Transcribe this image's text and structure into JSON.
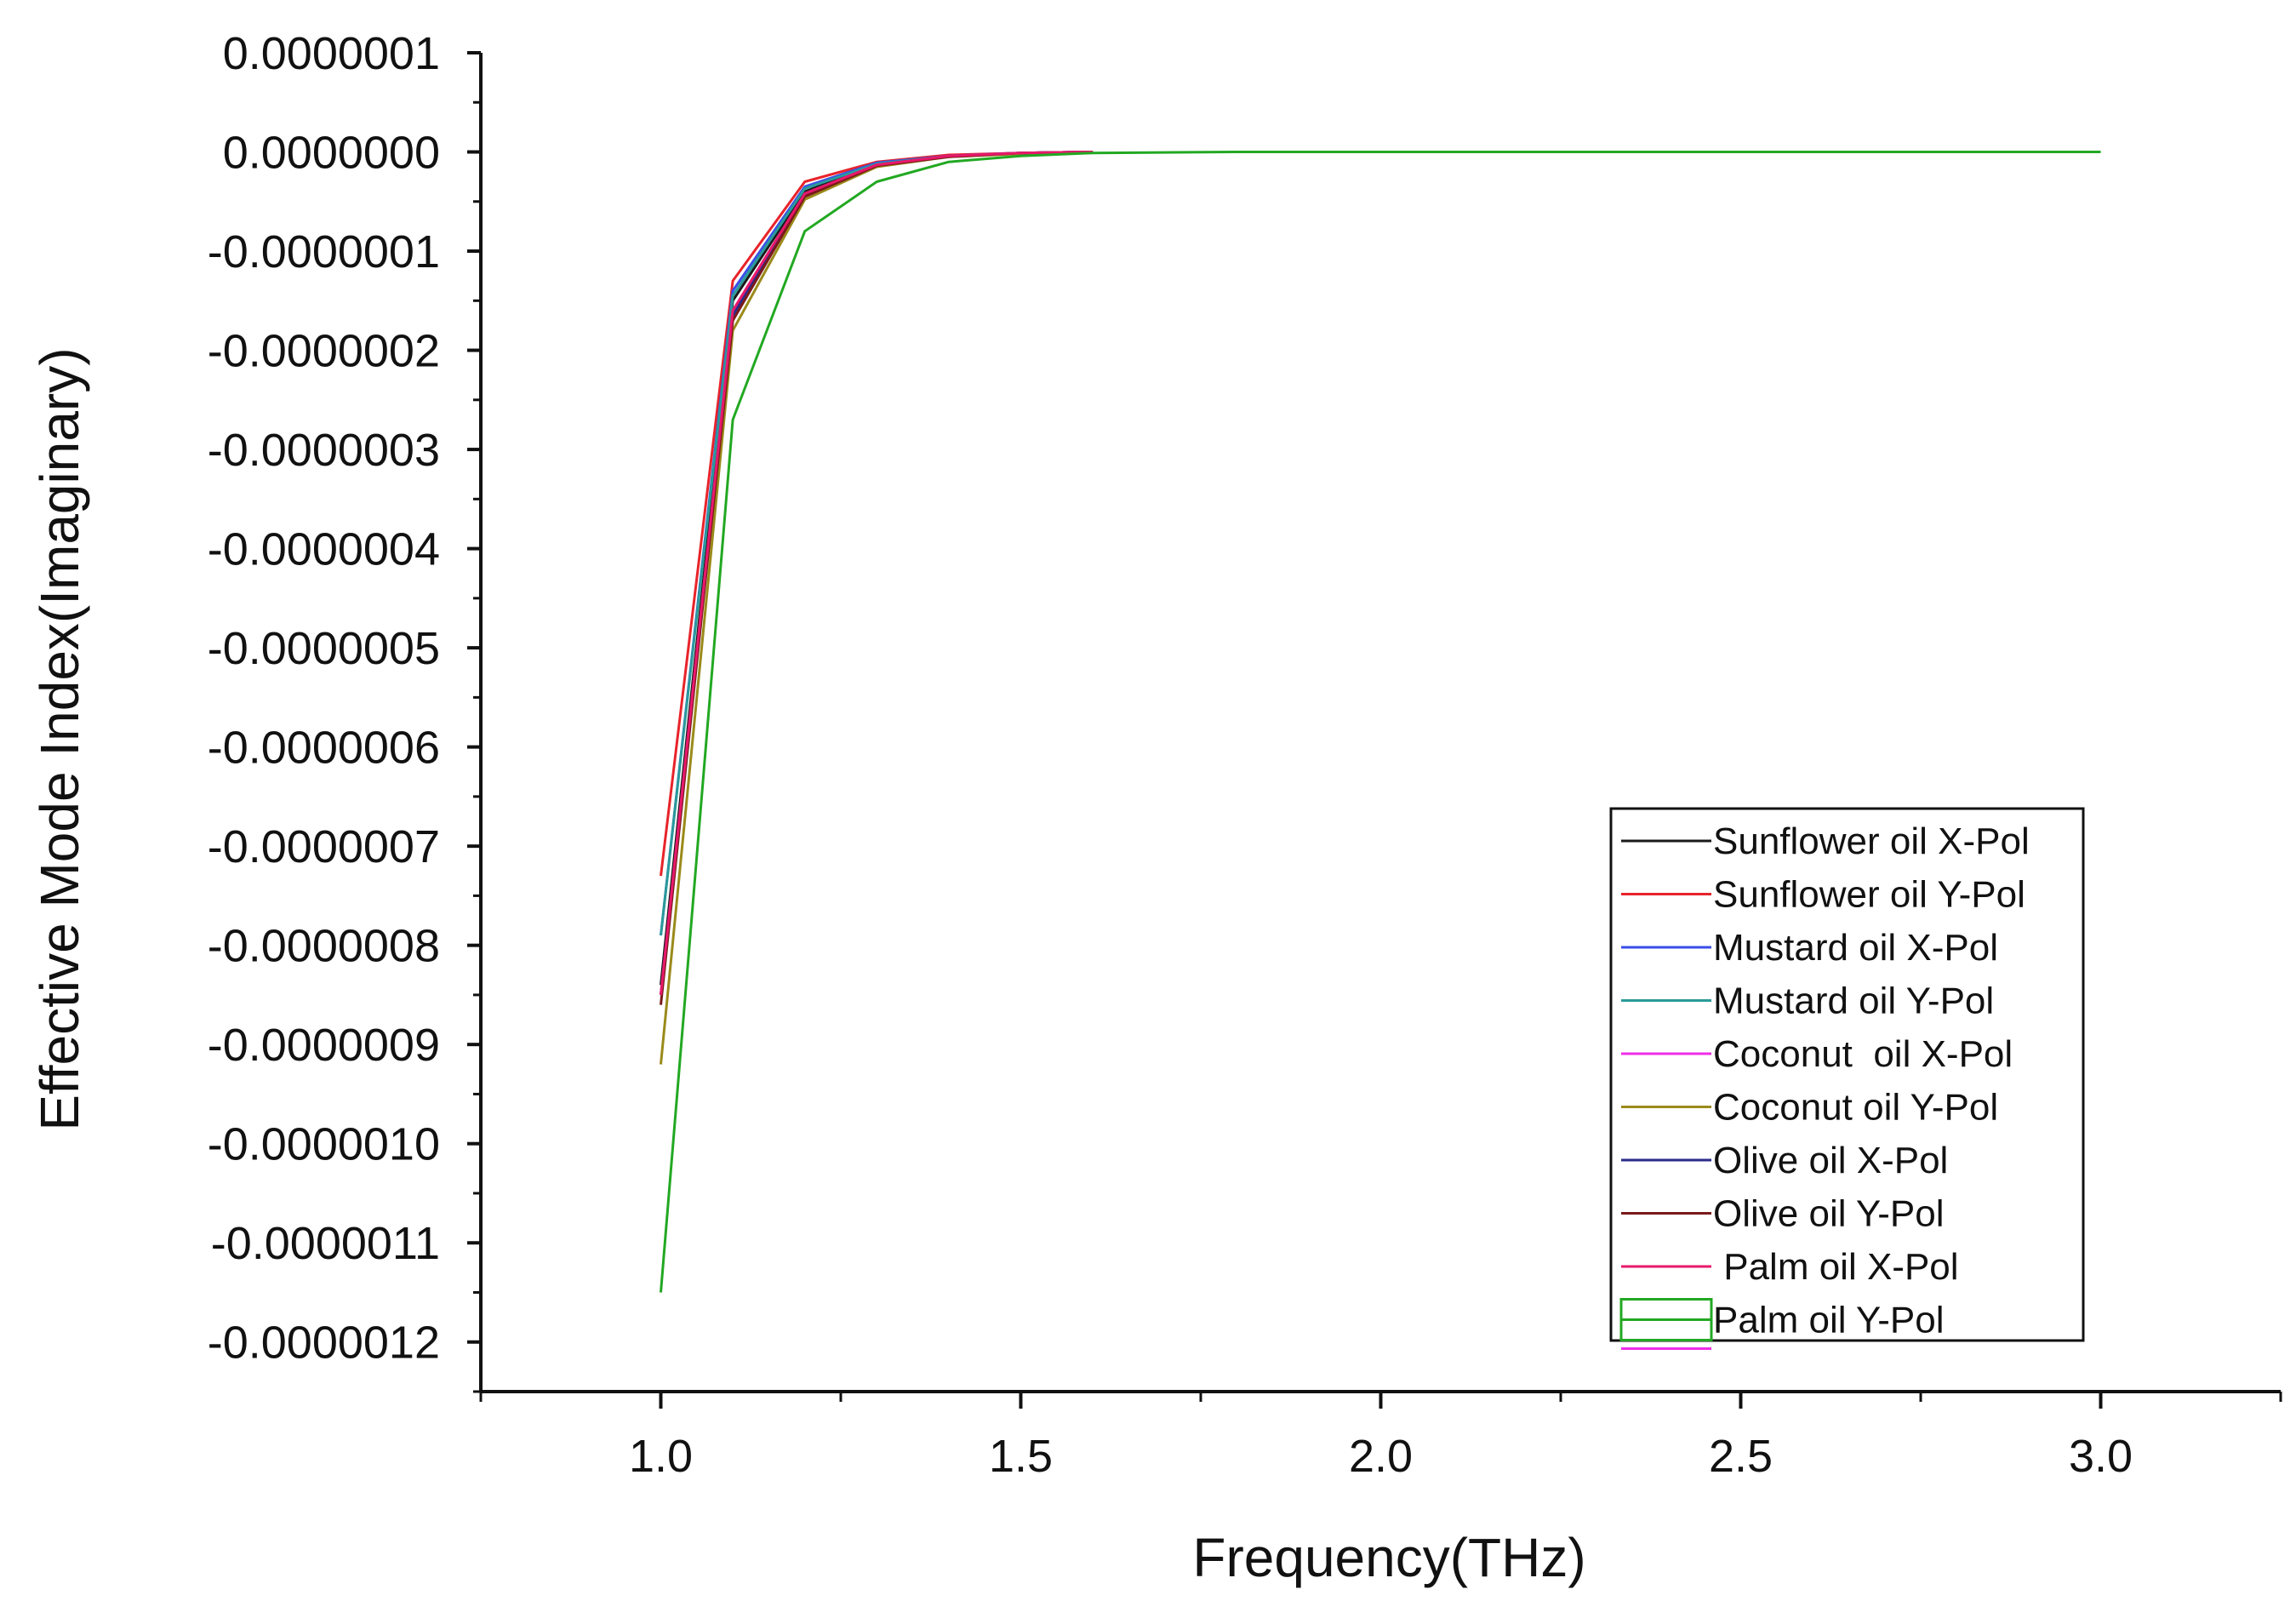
{
  "chart_data": {
    "type": "line",
    "xlabel": "Frequency(THz)",
    "ylabel": "Effective Mode Index(Imaginary)",
    "xlim": [
      0.75,
      3.25
    ],
    "ylim": [
      -1.25e-06,
      1e-07
    ],
    "xticks": [
      1.0,
      1.5,
      2.0,
      2.5,
      3.0
    ],
    "xtick_labels": [
      "1.0",
      "1.5",
      "2.0",
      "2.5",
      "3.0"
    ],
    "yticks": [
      1e-07,
      0,
      -1e-07,
      -2e-07,
      -3e-07,
      -4e-07,
      -5e-07,
      -6e-07,
      -7e-07,
      -8e-07,
      -9e-07,
      -1e-06,
      -1.1e-06,
      -1.2e-06
    ],
    "ytick_labels": [
      "0.0000001",
      "0.0000000",
      "-0.0000001",
      "-0.0000002",
      "-0.0000003",
      "-0.0000004",
      "-0.0000005",
      "-0.0000006",
      "-0.0000007",
      "-0.0000008",
      "-0.0000009",
      "-0.0000010",
      "-0.0000011",
      "-0.0000012"
    ],
    "grid": false,
    "legend_position": "bottom-right",
    "series": [
      {
        "name": "Sunflower oil X-Pol",
        "color": "#1a1a1a",
        "x": [
          1.0,
          1.1,
          1.2,
          1.3,
          1.4,
          1.5,
          1.6
        ],
        "y": [
          -8.4e-07,
          -1.5e-07,
          -4e-08,
          -1.2e-08,
          -4e-09,
          -1e-09,
          0
        ]
      },
      {
        "name": "Sunflower oil Y-Pol",
        "color": "#e8232a",
        "x": [
          1.0,
          1.1,
          1.2,
          1.3,
          1.4,
          1.5,
          1.6
        ],
        "y": [
          -7.3e-07,
          -1.3e-07,
          -3e-08,
          -1e-08,
          -3e-09,
          -1e-09,
          0
        ]
      },
      {
        "name": "Mustard oil X-Pol",
        "color": "#3a4ee8",
        "x": [
          1.0,
          1.1,
          1.2,
          1.3,
          1.4,
          1.5,
          1.6
        ],
        "y": [
          -7.9e-07,
          -1.4e-07,
          -3.5e-08,
          -1.1e-08,
          -4e-09,
          -1e-09,
          0
        ]
      },
      {
        "name": "Mustard oil Y-Pol",
        "color": "#2a9a9a",
        "x": [
          1.0,
          1.1,
          1.2,
          1.3,
          1.4,
          1.5,
          1.6
        ],
        "y": [
          -7.9e-07,
          -1.45e-07,
          -3.7e-08,
          -1.2e-08,
          -4e-09,
          -1e-09,
          0
        ]
      },
      {
        "name": "Coconut  oil X-Pol",
        "color": "#ee2ee8",
        "x": [
          1.0,
          1.1,
          1.2,
          1.3,
          1.4,
          1.5,
          1.6
        ],
        "y": [
          -8.5e-07,
          -1.6e-07,
          -4.2e-08,
          -1.3e-08,
          -4e-09,
          -1e-09,
          0
        ]
      },
      {
        "name": "Coconut oil Y-Pol",
        "color": "#9a8a1a",
        "x": [
          1.0,
          1.1,
          1.2,
          1.3,
          1.4,
          1.5,
          1.6
        ],
        "y": [
          -9.2e-07,
          -1.8e-07,
          -4.8e-08,
          -1.5e-08,
          -5e-09,
          -2e-09,
          0
        ]
      },
      {
        "name": "Olive oil X-Pol",
        "color": "#2a2a8a",
        "x": [
          1.0,
          1.1,
          1.2,
          1.3,
          1.4,
          1.5,
          1.6
        ],
        "y": [
          -8.5e-07,
          -1.65e-07,
          -4.3e-08,
          -1.3e-08,
          -4e-09,
          -1e-09,
          0
        ]
      },
      {
        "name": "Olive oil Y-Pol",
        "color": "#7a1a1a",
        "x": [
          1.0,
          1.1,
          1.2,
          1.3,
          1.4,
          1.5,
          1.6
        ],
        "y": [
          -8.6e-07,
          -1.7e-07,
          -4.5e-08,
          -1.4e-08,
          -5e-09,
          -1e-09,
          0
        ]
      },
      {
        "name": " Palm oil X-Pol",
        "color": "#e8186a",
        "x": [
          1.0,
          1.1,
          1.2,
          1.3,
          1.4,
          1.5,
          1.6
        ],
        "y": [
          -8.5e-07,
          -1.6e-07,
          -4.2e-08,
          -1.3e-08,
          -4e-09,
          -1e-09,
          0
        ]
      },
      {
        "name": "Palm oil Y-Pol",
        "color": "#22a822",
        "x": [
          1.0,
          1.1,
          1.2,
          1.3,
          1.4,
          1.5,
          1.6,
          1.8,
          2.0,
          2.2,
          2.4,
          2.6,
          2.8,
          3.0
        ],
        "y": [
          -1.15e-06,
          -2.7e-07,
          -8e-08,
          -3e-08,
          -1e-08,
          -4e-09,
          -1e-09,
          0,
          0,
          0,
          0,
          0,
          0,
          0
        ]
      }
    ]
  }
}
